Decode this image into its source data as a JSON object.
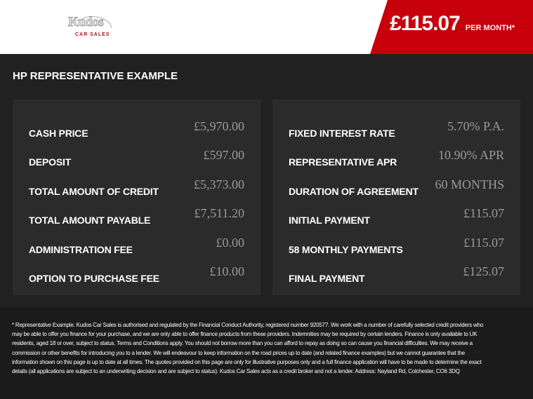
{
  "header": {
    "logo_text": "Kudos",
    "logo_subtext": "CAR SALES",
    "price": "£115.07",
    "price_suffix": "PER MONTH*",
    "brand_color": "#c8000b"
  },
  "section_title": "HP REPRESENTATIVE EXAMPLE",
  "left_panel": [
    {
      "label": "CASH PRICE",
      "value": "£5,970.00"
    },
    {
      "label": "DEPOSIT",
      "value": "£597.00"
    },
    {
      "label": "TOTAL AMOUNT OF CREDIT",
      "value": "£5,373.00"
    },
    {
      "label": "TOTAL AMOUNT PAYABLE",
      "value": "£7,511.20"
    },
    {
      "label": "ADMINISTRATION FEE",
      "value": "£0.00"
    },
    {
      "label": "OPTION TO PURCHASE FEE",
      "value": "£10.00"
    }
  ],
  "right_panel": [
    {
      "label": "FIXED INTEREST RATE",
      "value": "5.70% P.A."
    },
    {
      "label": "REPRESENTATIVE APR",
      "value": "10.90% APR"
    },
    {
      "label": "DURATION OF AGREEMENT",
      "value": "60 MONTHS"
    },
    {
      "label": "INITIAL PAYMENT",
      "value": "£115.07"
    },
    {
      "label": "58 MONTHLY PAYMENTS",
      "value": "£115.07"
    },
    {
      "label": "FINAL PAYMENT",
      "value": "£125.07"
    }
  ],
  "disclaimer": "* Representative Example. Kudos Car Sales is authorised and regulated by the Financial Conduct Authority, registered number 920577. We work with a number of carefully selected credit providers who may be able to offer you finance for your purchase, and we are only able to offer finance products from these providers. Indemnities may be required by certain lenders. Finance is only available to UK residents, aged 18 or over, subject to status. Terms and Conditions apply. You should not borrow more than you can afford to repay as doing so can cause you financial difficulties. We may receive a commission or other benefits for introducing you to a lender. We will endeavour to keep information on the road prices up to date (and related finance examples) but we cannot guarantee that the information shown on this page is up to date at all times. The quotes provided on this page are only for illustrative purposes only and a full finance application will have to be made to determine the exact details (all applications are subject to an underwriting decision and are subject to status). Kudos Car Sales acts as a credit broker and not a lender. Address: Nayland Rd, Colchester, CO6 3DQ"
}
